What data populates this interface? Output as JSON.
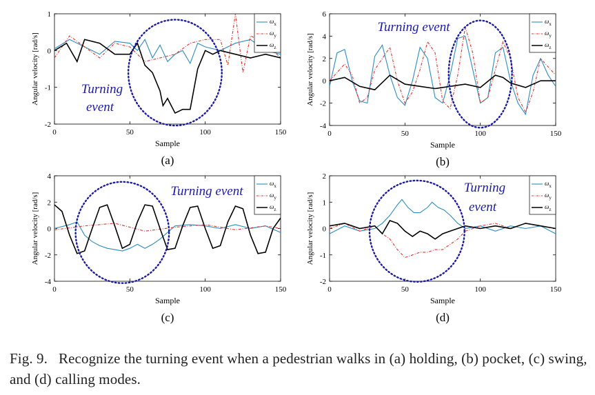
{
  "caption": {
    "figure": "Fig. 9.",
    "text": "Recognize the turning event when a pedestrian walks in (a) holding, (b) pocket, (c) swing, and (d) calling modes."
  },
  "colors": {
    "omega_x": "#2b8cbe",
    "omega_y": "#e8312e",
    "omega_z": "#000000",
    "annotation": "#1a1aa8"
  },
  "chart_data": [
    {
      "type": "line",
      "panel_label": "(a)",
      "xlabel": "Sample",
      "ylabel": "Angular velocity [rad/s]",
      "xlim": [
        0,
        150
      ],
      "ylim": [
        -2,
        1
      ],
      "xticks": [
        0,
        50,
        100,
        150
      ],
      "yticks": [
        -2,
        -1,
        0,
        1
      ],
      "legend_position": "top-right",
      "annotation": {
        "text": "Turning event",
        "circle_center": [
          80,
          -0.6
        ],
        "circle_x_range": [
          50,
          112
        ]
      },
      "series": [
        {
          "name": "ω_x",
          "style": "solid",
          "x": [
            0,
            10,
            20,
            30,
            40,
            50,
            55,
            60,
            65,
            70,
            75,
            80,
            85,
            90,
            95,
            100,
            110,
            120,
            130,
            140,
            150
          ],
          "y": [
            0.05,
            0.3,
            0.1,
            -0.1,
            0.25,
            0.2,
            0.0,
            0.3,
            -0.2,
            0.15,
            -0.3,
            -0.1,
            0.0,
            -0.35,
            0.2,
            0.1,
            0.0,
            0.2,
            0.3,
            0.0,
            -0.1
          ]
        },
        {
          "name": "ω_y",
          "style": "dashdot",
          "x": [
            0,
            10,
            20,
            30,
            40,
            50,
            60,
            70,
            80,
            90,
            100,
            110,
            115,
            120,
            125,
            130,
            140,
            150
          ],
          "y": [
            -0.2,
            0.4,
            0.1,
            -0.2,
            0.2,
            0.1,
            -0.3,
            -0.2,
            -0.1,
            0.2,
            0.3,
            0.3,
            -0.4,
            1.0,
            -0.6,
            0.4,
            0.2,
            -0.2
          ]
        },
        {
          "name": "ω_z",
          "style": "solid",
          "x": [
            0,
            8,
            15,
            20,
            30,
            40,
            50,
            55,
            60,
            65,
            70,
            72,
            75,
            80,
            85,
            90,
            95,
            100,
            105,
            110,
            120,
            130,
            140,
            150
          ],
          "y": [
            0.0,
            0.2,
            -0.3,
            0.3,
            0.2,
            -0.1,
            -0.1,
            0.2,
            -0.4,
            -0.6,
            -1.1,
            -1.5,
            -1.3,
            -1.7,
            -1.6,
            -1.6,
            -0.5,
            0.0,
            -0.1,
            0.0,
            -0.1,
            -0.2,
            -0.1,
            -0.2
          ]
        }
      ]
    },
    {
      "type": "line",
      "panel_label": "(b)",
      "xlabel": "Sample",
      "ylabel": "Angular velocity [rad/s]",
      "xlim": [
        0,
        150
      ],
      "ylim": [
        -4,
        6
      ],
      "xticks": [
        0,
        50,
        100,
        150
      ],
      "yticks": [
        -4,
        -2,
        0,
        2,
        4,
        6
      ],
      "legend_position": "top-right",
      "annotation": {
        "text": "Turning event",
        "circle_center": [
          100,
          0.6
        ],
        "circle_x_range": [
          80,
          122
        ]
      },
      "series": [
        {
          "name": "ω_x",
          "style": "solid",
          "x": [
            0,
            5,
            10,
            15,
            20,
            25,
            30,
            35,
            40,
            45,
            50,
            55,
            60,
            65,
            70,
            75,
            80,
            85,
            90,
            95,
            100,
            105,
            110,
            115,
            120,
            125,
            130,
            135,
            140,
            145,
            150
          ],
          "y": [
            -0.5,
            2.5,
            2.8,
            0.0,
            -1.8,
            -2.0,
            2.2,
            3.2,
            0.5,
            -1.5,
            -2.2,
            0.0,
            3.0,
            2.0,
            -1.5,
            -2.0,
            0.5,
            3.8,
            4.0,
            1.0,
            -2.0,
            -1.5,
            2.5,
            3.0,
            0.0,
            -2.0,
            -3.0,
            0.5,
            2.0,
            0.5,
            -0.5
          ]
        },
        {
          "name": "ω_y",
          "style": "dashdot",
          "x": [
            0,
            10,
            15,
            20,
            25,
            30,
            40,
            45,
            50,
            55,
            60,
            65,
            70,
            75,
            80,
            85,
            90,
            95,
            100,
            105,
            110,
            115,
            120,
            125,
            130,
            135,
            140,
            150
          ],
          "y": [
            0.0,
            1.5,
            0.5,
            -2.0,
            -1.5,
            1.0,
            3.0,
            0.0,
            -2.0,
            -1.0,
            1.0,
            3.5,
            2.5,
            -1.8,
            -2.5,
            0.5,
            4.8,
            2.5,
            -2.0,
            -1.5,
            1.0,
            3.5,
            2.0,
            -1.5,
            -2.8,
            -1.0,
            2.0,
            0.5
          ]
        },
        {
          "name": "ω_z",
          "style": "solid",
          "x": [
            0,
            10,
            20,
            30,
            40,
            50,
            60,
            70,
            80,
            90,
            100,
            110,
            115,
            120,
            130,
            140,
            150
          ],
          "y": [
            0.0,
            0.3,
            -0.5,
            -0.8,
            0.5,
            -0.3,
            -0.5,
            -0.7,
            -0.5,
            -0.3,
            -0.6,
            0.5,
            0.3,
            -0.2,
            -0.6,
            0.0,
            0.0
          ]
        }
      ]
    },
    {
      "type": "line",
      "panel_label": "(c)",
      "xlabel": "Sample",
      "ylabel": "Angular velocity [rad/s]",
      "xlim": [
        0,
        150
      ],
      "ylim": [
        -4,
        4
      ],
      "xticks": [
        0,
        50,
        100,
        150
      ],
      "yticks": [
        -4,
        -2,
        0,
        2,
        4
      ],
      "legend_position": "top-right",
      "annotation": {
        "text": "Turning event",
        "circle_center": [
          45,
          -0.3
        ],
        "circle_x_range": [
          15,
          77
        ]
      },
      "series": [
        {
          "name": "ω_x",
          "style": "solid",
          "x": [
            0,
            10,
            15,
            20,
            25,
            30,
            35,
            40,
            45,
            50,
            55,
            60,
            65,
            70,
            75,
            80,
            90,
            100,
            110,
            120,
            130,
            140,
            150
          ],
          "y": [
            0.0,
            0.3,
            0.5,
            -0.5,
            -1.0,
            -1.3,
            -1.5,
            -1.6,
            -1.7,
            -1.5,
            -1.2,
            -1.5,
            -1.2,
            -0.8,
            -0.3,
            0.2,
            0.3,
            0.2,
            0.0,
            0.3,
            0.0,
            0.2,
            -0.3
          ]
        },
        {
          "name": "ω_y",
          "style": "dashdot",
          "x": [
            0,
            20,
            40,
            60,
            80,
            100,
            120,
            140,
            150
          ],
          "y": [
            -0.1,
            0.2,
            0.4,
            -0.2,
            0.1,
            0.3,
            -0.1,
            0.2,
            0.0
          ]
        },
        {
          "name": "ω_z",
          "style": "solid",
          "x": [
            0,
            5,
            10,
            15,
            20,
            25,
            30,
            35,
            40,
            45,
            50,
            55,
            60,
            65,
            70,
            75,
            80,
            85,
            90,
            95,
            100,
            105,
            110,
            115,
            120,
            125,
            130,
            135,
            140,
            145,
            150
          ],
          "y": [
            1.8,
            1.3,
            -0.5,
            -1.9,
            -1.7,
            0.0,
            1.6,
            1.8,
            0.2,
            -1.5,
            -1.2,
            0.5,
            1.8,
            1.7,
            0.0,
            -1.6,
            -1.5,
            0.2,
            1.6,
            1.7,
            0.0,
            -1.5,
            -1.3,
            0.5,
            1.7,
            1.5,
            -0.5,
            -1.9,
            -1.8,
            0.0,
            0.8
          ]
        }
      ]
    },
    {
      "type": "line",
      "panel_label": "(d)",
      "xlabel": "Sample",
      "ylabel": "Angular velocity [rad/s]",
      "xlim": [
        0,
        150
      ],
      "ylim": [
        -2,
        2
      ],
      "xticks": [
        0,
        50,
        100,
        150
      ],
      "yticks": [
        -2,
        -1,
        0,
        1,
        2
      ],
      "legend_position": "top-right",
      "annotation": {
        "text": "Turning event",
        "circle_center": [
          58,
          -0.1
        ],
        "circle_x_range": [
          27,
          90
        ]
      },
      "series": [
        {
          "name": "ω_x",
          "style": "solid",
          "x": [
            0,
            10,
            20,
            30,
            35,
            40,
            45,
            48,
            52,
            56,
            60,
            65,
            68,
            72,
            76,
            80,
            85,
            90,
            100,
            110,
            120,
            130,
            140,
            150
          ],
          "y": [
            -0.2,
            0.1,
            -0.1,
            0.0,
            0.2,
            0.5,
            0.9,
            1.1,
            0.8,
            0.6,
            0.6,
            0.8,
            1.0,
            0.8,
            0.7,
            0.5,
            0.2,
            0.0,
            0.1,
            -0.1,
            0.1,
            0.0,
            0.1,
            -0.2
          ]
        },
        {
          "name": "ω_y",
          "style": "dashdot",
          "x": [
            0,
            10,
            20,
            30,
            35,
            40,
            45,
            50,
            55,
            60,
            65,
            70,
            75,
            80,
            85,
            90,
            100,
            110,
            120,
            130,
            140,
            150
          ],
          "y": [
            0.0,
            0.2,
            -0.1,
            0.1,
            -0.2,
            -0.4,
            -0.8,
            -1.1,
            -1.0,
            -0.9,
            -0.9,
            -0.8,
            -0.8,
            -0.6,
            -0.4,
            -0.1,
            0.1,
            0.2,
            0.0,
            0.2,
            0.1,
            0.0
          ]
        },
        {
          "name": "ω_z",
          "style": "solid",
          "x": [
            0,
            10,
            20,
            30,
            35,
            40,
            45,
            50,
            55,
            60,
            65,
            70,
            75,
            80,
            90,
            100,
            110,
            120,
            130,
            140,
            150
          ],
          "y": [
            0.1,
            0.2,
            0.0,
            0.1,
            -0.2,
            0.3,
            0.2,
            -0.1,
            -0.3,
            -0.1,
            -0.2,
            -0.4,
            -0.2,
            -0.1,
            0.1,
            0.0,
            0.1,
            0.0,
            0.2,
            0.1,
            0.0
          ]
        }
      ]
    }
  ]
}
